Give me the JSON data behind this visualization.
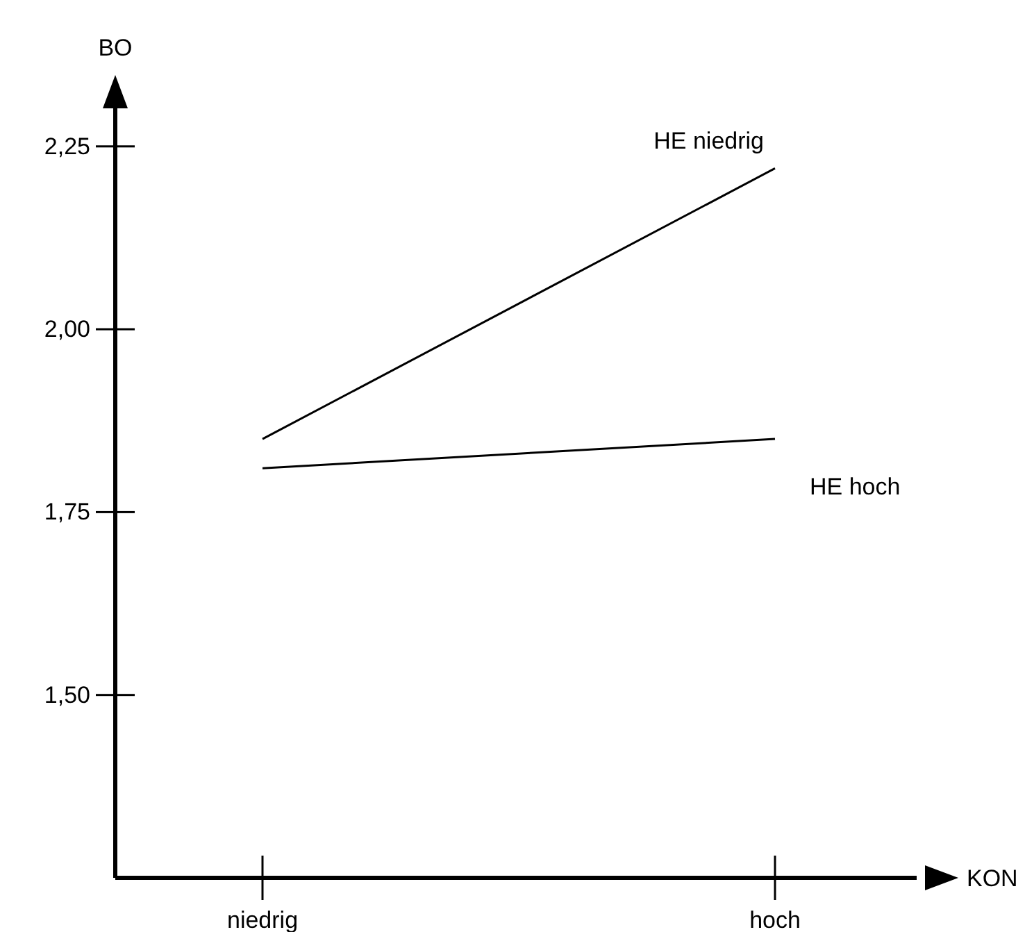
{
  "chart_data": {
    "type": "line",
    "xlabel": "KON",
    "ylabel": "BO",
    "categories": [
      "niedrig",
      "hoch"
    ],
    "series": [
      {
        "name": "HE niedrig",
        "color": "#000000",
        "values": [
          1.85,
          2.22
        ]
      },
      {
        "name": "HE hoch",
        "color": "#000000",
        "values": [
          1.81,
          1.85
        ]
      }
    ],
    "ylim": [
      1.25,
      2.34
    ],
    "yticks": [
      {
        "value": 1.5,
        "label": "1,50"
      },
      {
        "value": 1.75,
        "label": "1,75"
      },
      {
        "value": 2.0,
        "label": "2,00"
      },
      {
        "value": 2.25,
        "label": "2,25"
      }
    ],
    "grid": false,
    "legend": false,
    "marker": "none",
    "line_style": "solid"
  }
}
